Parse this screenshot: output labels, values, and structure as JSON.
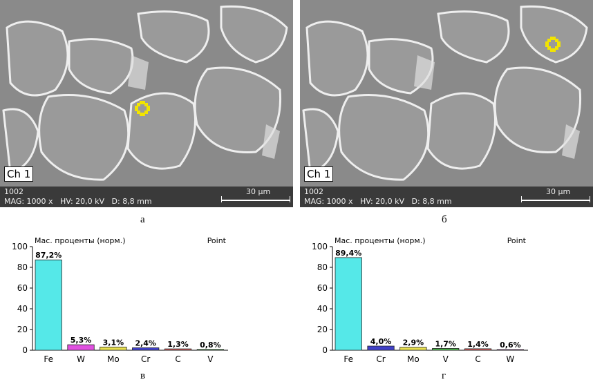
{
  "panels": [
    {
      "caption": "а",
      "channel": "Ch 1",
      "info_line1": "1002",
      "info_line2": "MAG: 1000 x   HV: 20,0 kV   D: 8,8 mm",
      "scale_label": "30 μm",
      "marker_color": "#f2e400"
    },
    {
      "caption": "б",
      "channel": "Ch 1",
      "info_line1": "1002",
      "info_line2": "MAG: 1000 x   HV: 20,0 kV   D: 8,8 mm",
      "scale_label": "30 μm",
      "marker_color": "#f2e400"
    }
  ],
  "chart_data": [
    {
      "type": "bar",
      "title": "Мас. проценты (норм.)",
      "mode": "Point",
      "caption": "в",
      "categories": [
        "Fe",
        "W",
        "Mo",
        "Cr",
        "C",
        "V"
      ],
      "values": [
        87.2,
        5.3,
        3.1,
        2.4,
        1.3,
        0.8
      ],
      "labels": [
        "87,2%",
        "5,3%",
        "3,1%",
        "2,4%",
        "1,3%",
        "0,8%"
      ],
      "colors": [
        "#55e8e8",
        "#e050e0",
        "#e8e050",
        "#4040c8",
        "#e86060",
        "#50c050"
      ],
      "yticks": [
        "0",
        "20",
        "40",
        "60",
        "80",
        "100"
      ],
      "ylim": [
        0,
        100
      ],
      "grid": false
    },
    {
      "type": "bar",
      "title": "Мас. проценты (норм.)",
      "mode": "Point",
      "caption": "г",
      "categories": [
        "Fe",
        "Cr",
        "Mo",
        "V",
        "C",
        "W"
      ],
      "values": [
        89.4,
        4.0,
        2.9,
        1.7,
        1.4,
        0.6
      ],
      "labels": [
        "89,4%",
        "4,0%",
        "2,9%",
        "1,7%",
        "1,4%",
        "0,6%"
      ],
      "colors": [
        "#55e8e8",
        "#4040c8",
        "#e8e050",
        "#50c050",
        "#e86060",
        "#e050e0"
      ],
      "yticks": [
        "0",
        "20",
        "40",
        "60",
        "80",
        "100"
      ],
      "ylim": [
        0,
        100
      ],
      "grid": false
    }
  ]
}
